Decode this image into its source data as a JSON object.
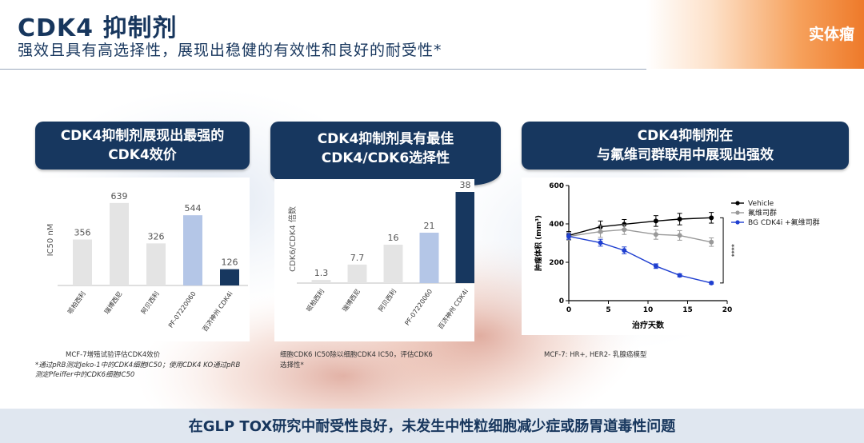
{
  "header": {
    "title": "CDK4 抑制剂",
    "subtitle": "强效且具有高选择性，展现出稳健的有效性和良好的耐受性*",
    "tag": "实体瘤",
    "colors": {
      "navy": "#17375f",
      "orange": "#ee7a2a"
    }
  },
  "panels": [
    {
      "title_line1": "CDK4抑制剂展现出最强的",
      "title_line2": "CDK4效价"
    },
    {
      "title_line1": "CDK4抑制剂具有最佳",
      "title_line2": "CDK4/CDK6选择性"
    },
    {
      "title_line1": "CDK4抑制剂在",
      "title_line2": "与氟维司群联用中展现出强效"
    }
  ],
  "footnotes": {
    "left_line1": "MCF-7增殖试验评估CDK4效价",
    "left_line2": "*通过pRB测定Jeko-1中的CDK4细胞IC50；使用CDK4 KO通过pRB",
    "left_line3": "测定Pfeiffer中的CDK6细胞IC50",
    "mid_line1": "细胞CDK6 IC50除以细胞CDK4 IC50，评估CDK6",
    "mid_line2": "选择性*",
    "right_line1": "MCF-7: HR+, HER2- 乳腺癌模型"
  },
  "banner": {
    "text": "在GLP TOX研究中耐受性良好，未发生中性粒细胞减少症或肠胃道毒性问题"
  },
  "chart_data": [
    {
      "type": "bar",
      "ylabel": "IC50 nM",
      "categories": [
        "哌柏西利",
        "瑞博西尼",
        "阿贝西利",
        "PF-07220060",
        "百济神州 CDK4i"
      ],
      "values": [
        356,
        639,
        326,
        544,
        126
      ],
      "value_labels": [
        "356",
        "639",
        "326",
        "544",
        "126"
      ],
      "colors": [
        "#e4e4e4",
        "#e4e4e4",
        "#e4e4e4",
        "#b4c6e7",
        "#17375f"
      ],
      "ylim": [
        0,
        700
      ]
    },
    {
      "type": "bar",
      "ylabel": "CDK6/CDK4 倍数",
      "categories": [
        "哌柏西利",
        "瑞博西尼",
        "阿贝西利",
        "PF-07220060",
        "百济神州 CDK4i"
      ],
      "values": [
        1.3,
        7.7,
        16,
        21,
        38
      ],
      "value_labels": [
        "1.3",
        "7.7",
        "16",
        "21",
        "38"
      ],
      "colors": [
        "#e4e4e4",
        "#e4e4e4",
        "#e4e4e4",
        "#b4c6e7",
        "#17375f"
      ],
      "ylim": [
        0,
        38
      ]
    },
    {
      "type": "line",
      "xlabel": "治疗天数",
      "ylabel": "肿瘤体积 (mm³)",
      "xlim": [
        0,
        20
      ],
      "ylim": [
        0,
        600
      ],
      "xticks": [
        0,
        5,
        10,
        15,
        20
      ],
      "yticks": [
        0,
        200,
        400,
        600
      ],
      "significance": "****",
      "legend_position": "top-right",
      "series": [
        {
          "name": "Vehicle",
          "color": "#000000",
          "x": [
            0,
            4,
            7,
            11,
            14,
            18
          ],
          "y": [
            340,
            385,
            398,
            415,
            425,
            432
          ],
          "err": [
            20,
            30,
            25,
            28,
            30,
            28
          ]
        },
        {
          "name": "氟维司群",
          "color": "#999999",
          "x": [
            0,
            4,
            7,
            11,
            14,
            18
          ],
          "y": [
            335,
            360,
            370,
            345,
            340,
            305
          ],
          "err": [
            20,
            30,
            25,
            25,
            25,
            22
          ]
        },
        {
          "name": "BG CDK4i +氟维司群",
          "color": "#1f3fd0",
          "x": [
            0,
            4,
            7,
            11,
            14,
            18
          ],
          "y": [
            335,
            302,
            262,
            180,
            132,
            92
          ],
          "err": [
            15,
            18,
            18,
            12,
            8,
            6
          ]
        }
      ]
    }
  ]
}
